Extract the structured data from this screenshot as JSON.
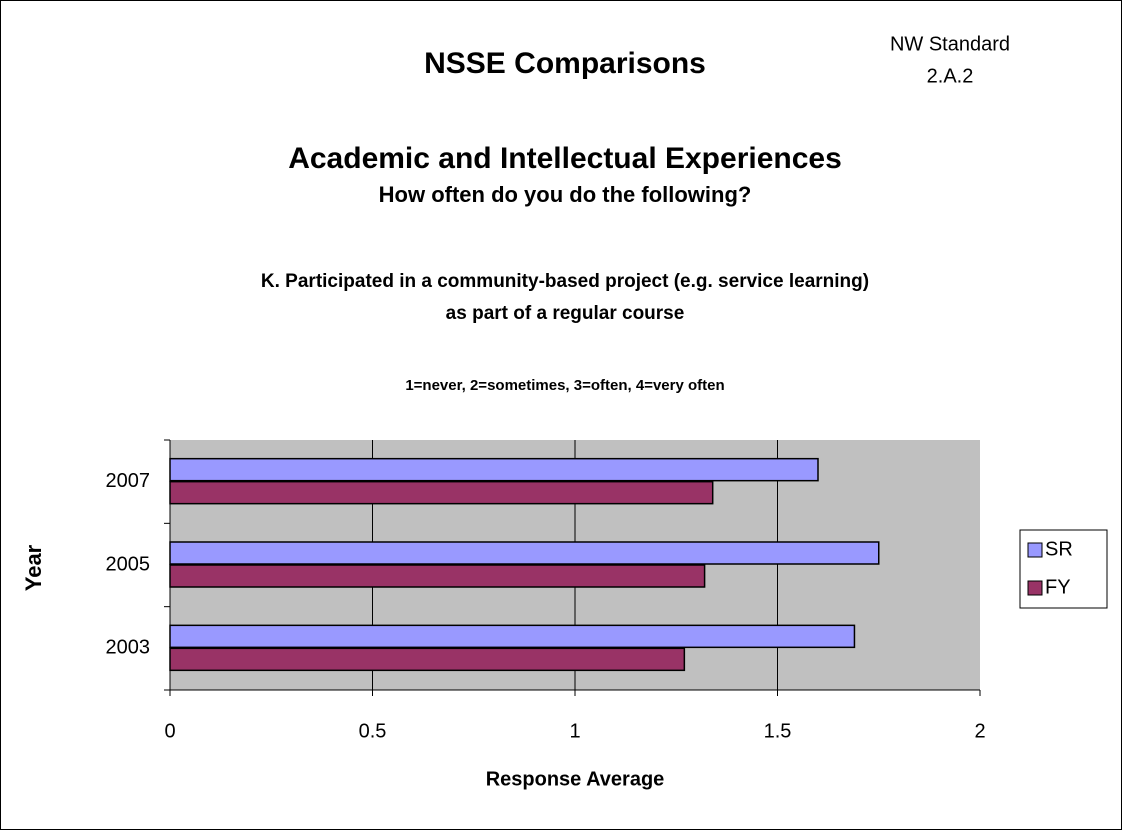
{
  "chart_data": {
    "type": "barh",
    "title": "NSSE Comparisons",
    "note": [
      "NW Standard",
      "2.A.2"
    ],
    "subtitle": "Academic and Intellectual Experiences",
    "subtitle2": "How often do you do the following?",
    "question": [
      "K. Participated in a community-based project (e.g. service learning)",
      "as part of a regular course"
    ],
    "scale_note": "1=never, 2=sometimes, 3=often, 4=very often",
    "ylabel": "Year",
    "xlabel": "Response Average",
    "categories": [
      "2003",
      "2005",
      "2007"
    ],
    "series": [
      {
        "name": "SR",
        "color": "#9999ff",
        "values": [
          1.69,
          1.75,
          1.6
        ]
      },
      {
        "name": "FY",
        "color": "#993366",
        "values": [
          1.27,
          1.32,
          1.34
        ]
      }
    ],
    "xlim": [
      0,
      2
    ],
    "xticks": [
      0,
      0.5,
      1,
      1.5,
      2
    ],
    "grid": true,
    "plot_background": "#c0c0c0",
    "legend": "right"
  }
}
